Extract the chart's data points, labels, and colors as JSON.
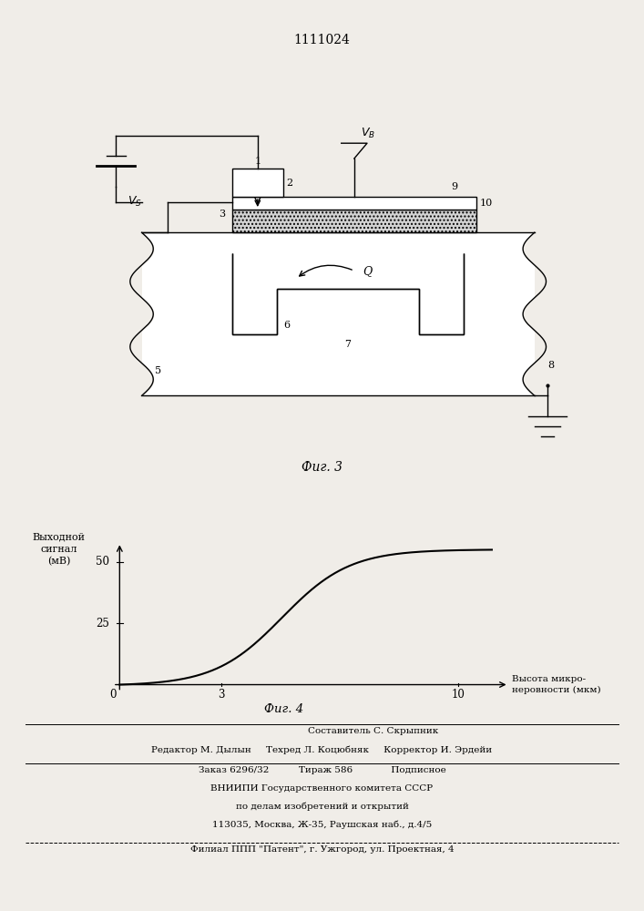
{
  "title": "1111024",
  "fig3_caption": "Фиг. 3",
  "fig4_caption": "Фиг. 4",
  "ylabel": "Выходной\nсигнал\n(мВ)",
  "xlabel": "Высота микро-\nнеровности (мкм)",
  "ytick_25": 25,
  "ytick_50": 50,
  "xtick_3": 3,
  "xtick_10": 10,
  "xlim": [
    0,
    11.5
  ],
  "ylim": [
    0,
    60
  ],
  "curve_color": "#000000",
  "bg_color": "#f0ede8",
  "lw": 1.0,
  "footer_lines": [
    "Составитель С. Скрыпник",
    "Редактор М. Дылын     Техред Л. Коцюбняк     Корректор И. Эрдейи",
    "Заказ 6296/32          Тираж 586             Подписное",
    "ВНИИПИ Государственного комитета СССР",
    "по делам изобретений и открытий",
    "113035, Москва, Ж-35, Раушская наб., д.4/5",
    "Филиал ППП \"Патент\", г. Ужгород, ул. Проектная, 4"
  ]
}
